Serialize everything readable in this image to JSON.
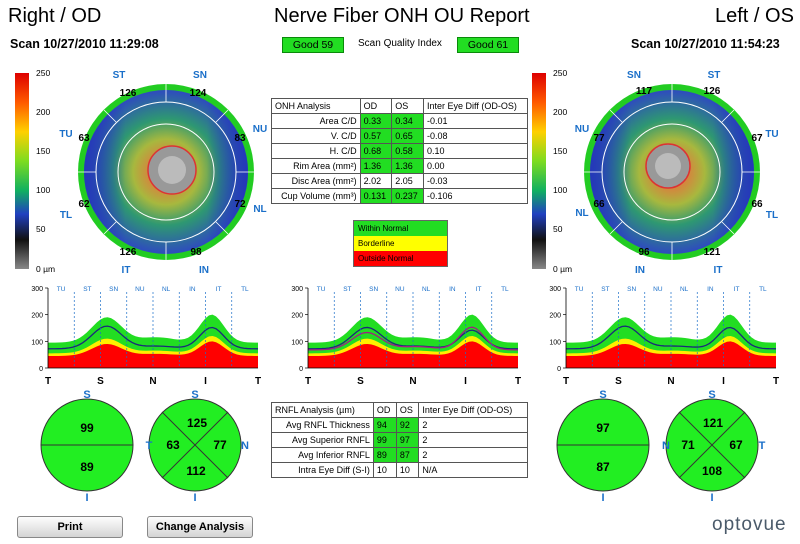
{
  "header": {
    "left_title": "Right / OD",
    "center_title": "Nerve Fiber ONH OU Report",
    "right_title": "Left / OS",
    "od_scan": "Scan 10/27/2010 11:29:08",
    "os_scan": "Scan 10/27/2010 11:54:23",
    "od_quality": "Good  59",
    "os_quality": "Good  61",
    "quality_label": "Scan Quality Index"
  },
  "colorbar": {
    "ticks": [
      "250",
      "200",
      "150",
      "100",
      "50",
      "0 µm"
    ]
  },
  "maps": {
    "od": {
      "top_labels": [
        "ST",
        "SN"
      ],
      "left_labels": [
        "TU",
        "TL"
      ],
      "right_labels": [
        "NU",
        "NL"
      ],
      "bottom_labels": [
        "IT",
        "IN"
      ],
      "sector_values": {
        "top_left": "126",
        "top_right": "124",
        "right_top": "83",
        "right_bottom": "72",
        "bottom_left": "126",
        "bottom_right": "98",
        "left_top": "63",
        "left_bottom": "62"
      }
    },
    "os": {
      "top_labels": [
        "SN",
        "ST"
      ],
      "left_labels": [
        "NU",
        "NL"
      ],
      "right_labels": [
        "TU",
        "TL"
      ],
      "bottom_labels": [
        "IN",
        "IT"
      ],
      "sector_values": {
        "top_left": "117",
        "top_right": "126",
        "right_top": "67",
        "right_bottom": "66",
        "bottom_left": "96",
        "bottom_right": "121",
        "left_top": "77",
        "left_bottom": "66"
      }
    }
  },
  "onh_table": {
    "headers": [
      "ONH Analysis",
      "OD",
      "OS",
      "Inter Eye Diff (OD-OS)"
    ],
    "rows": [
      [
        "Area C/D",
        "0.33",
        "0.34",
        "-0.01"
      ],
      [
        "V. C/D",
        "0.57",
        "0.65",
        "-0.08"
      ],
      [
        "H. C/D",
        "0.68",
        "0.58",
        "0.10"
      ],
      [
        "Rim Area (mm²)",
        "1.36",
        "1.36",
        "0.00"
      ],
      [
        "Disc Area (mm²)",
        "2.02",
        "2.05",
        "-0.03"
      ],
      [
        "Cup Volume (mm³)",
        "0.131",
        "0.237",
        "-0.106"
      ]
    ]
  },
  "norm_legend": {
    "within": "Within Normal",
    "borderline": "Borderline",
    "outside": "Outside Normal"
  },
  "tsnit": {
    "y_ticks": [
      "300",
      "200",
      "100",
      "0"
    ],
    "sectors": [
      "TU",
      "ST",
      "SN",
      "NU",
      "NL",
      "IN",
      "IT",
      "TL"
    ],
    "x_ticks": [
      "T",
      "S",
      "N",
      "I",
      "T"
    ]
  },
  "rnfl_table": {
    "headers": [
      "RNFL Analysis (µm)",
      "OD",
      "OS",
      "Inter Eye Diff (OD-OS)"
    ],
    "rows": [
      [
        "Avg RNFL Thickness",
        "94",
        "92",
        "2"
      ],
      [
        "Avg Superior RNFL",
        "99",
        "97",
        "2"
      ],
      [
        "Avg Inferior RNFL",
        "89",
        "87",
        "2"
      ],
      [
        "Intra Eye Diff  (S-I)",
        "10",
        "10",
        "N/A"
      ]
    ]
  },
  "od_hemi": {
    "S": "S",
    "I": "I",
    "top": "99",
    "bottom": "89"
  },
  "od_quad": {
    "S": "S",
    "I": "I",
    "N": "N",
    "T": "T",
    "top": "125",
    "left": "63",
    "right": "77",
    "bottom": "112"
  },
  "os_hemi": {
    "S": "S",
    "I": "I",
    "top": "97",
    "bottom": "87"
  },
  "os_quad": {
    "S": "S",
    "I": "I",
    "N": "N",
    "T": "T",
    "top": "121",
    "left": "71",
    "right": "67",
    "bottom": "108"
  },
  "buttons": {
    "print": "Print",
    "change": "Change Analysis"
  },
  "logo": "optovue",
  "colors": {
    "good": "#22dd22",
    "borderline": "#ffff00",
    "outside": "#ff0000",
    "label_blue": "#1a6fc9"
  }
}
